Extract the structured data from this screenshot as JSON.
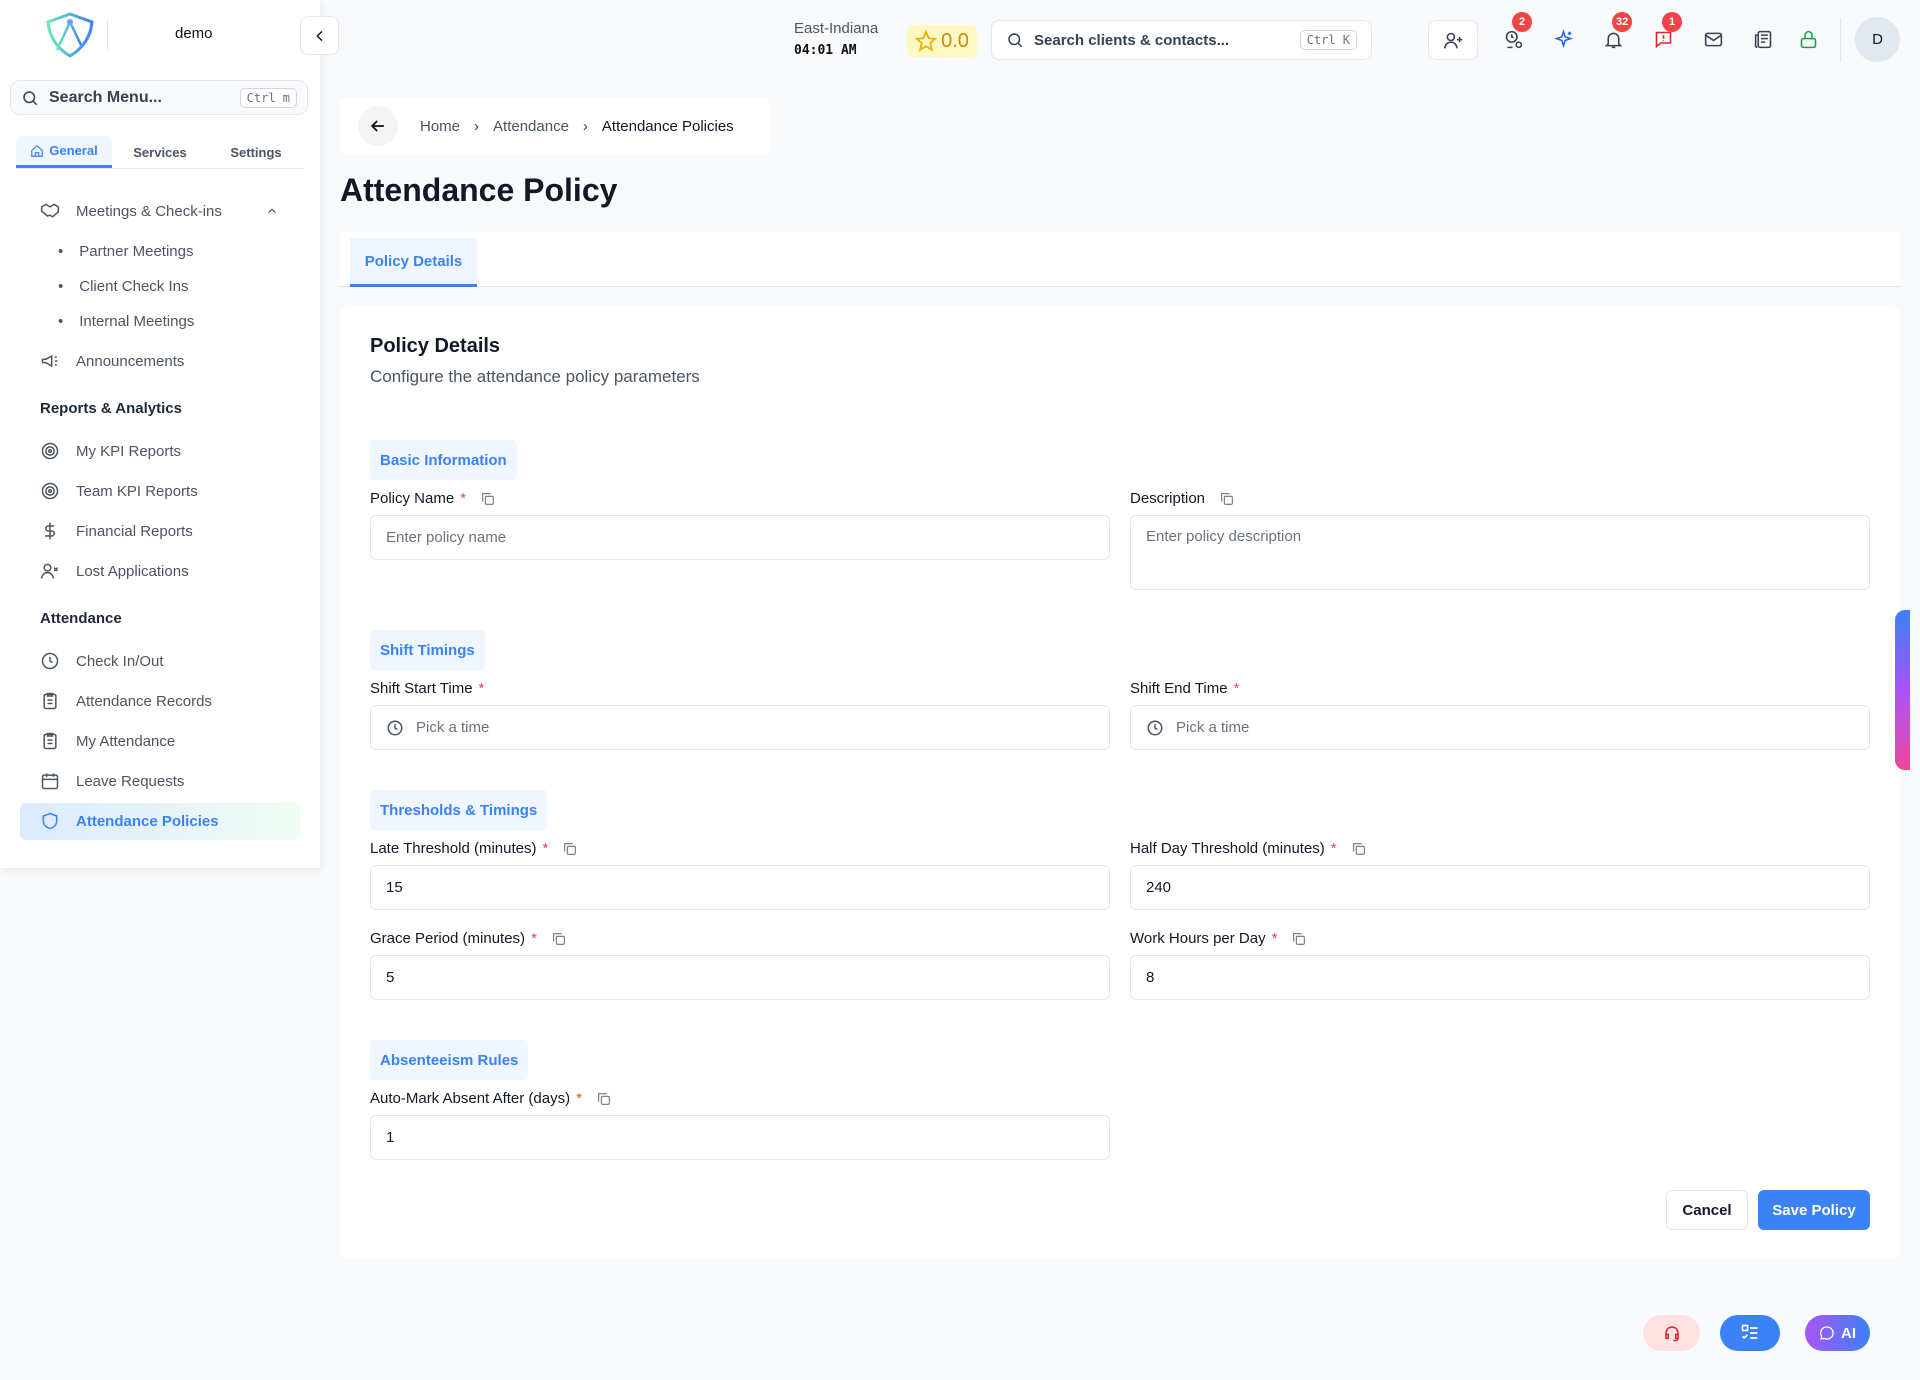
{
  "brand": {
    "name": "demo"
  },
  "sidebar": {
    "search_placeholder": "Search Menu...",
    "search_shortcut": "Ctrl m",
    "tabs": [
      {
        "label": "General"
      },
      {
        "label": "Services"
      },
      {
        "label": "Settings"
      }
    ],
    "meetings": {
      "label": "Meetings & Check-ins",
      "children": [
        "Partner Meetings",
        "Client Check Ins",
        "Internal Meetings"
      ]
    },
    "announcements": "Announcements",
    "reports_header": "Reports & Analytics",
    "reports": [
      "My KPI Reports",
      "Team KPI Reports",
      "Financial Reports",
      "Lost Applications"
    ],
    "attendance_header": "Attendance",
    "attendance": [
      "Check In/Out",
      "Attendance Records",
      "My Attendance",
      "Leave Requests",
      "Attendance Policies"
    ]
  },
  "header": {
    "timezone": "East-Indiana",
    "time": "04:01 AM",
    "rating": "0.0",
    "search_placeholder": "Search clients & contacts...",
    "search_shortcut": "Ctrl K",
    "badges": {
      "contacts": "2",
      "notifications": "32",
      "alerts": "1"
    },
    "avatar": "D"
  },
  "breadcrumb": [
    "Home",
    "Attendance",
    "Attendance Policies"
  ],
  "page_title": "Attendance Policy",
  "tab": "Policy Details",
  "form": {
    "title": "Policy Details",
    "subtitle": "Configure the attendance policy parameters",
    "sections": {
      "basic": "Basic Information",
      "shift": "Shift Timings",
      "thresholds": "Thresholds & Timings",
      "absent": "Absenteeism Rules"
    },
    "policy_name": {
      "label": "Policy Name",
      "placeholder": "Enter policy name",
      "value": ""
    },
    "description": {
      "label": "Description",
      "placeholder": "Enter policy description",
      "value": ""
    },
    "shift_start": {
      "label": "Shift Start Time",
      "placeholder": "Pick a time"
    },
    "shift_end": {
      "label": "Shift End Time",
      "placeholder": "Pick a time"
    },
    "late": {
      "label": "Late Threshold (minutes)",
      "value": "15"
    },
    "half_day": {
      "label": "Half Day Threshold (minutes)",
      "value": "240"
    },
    "grace": {
      "label": "Grace Period (minutes)",
      "value": "5"
    },
    "work_hours": {
      "label": "Work Hours per Day",
      "value": "8"
    },
    "auto_absent": {
      "label": "Auto-Mark Absent After (days)",
      "value": "1"
    },
    "required_mark": "*",
    "cancel": "Cancel",
    "save": "Save Policy"
  },
  "fab": {
    "ai": "AI"
  },
  "colors": {
    "primary": "#3b82f6",
    "danger": "#ef4444",
    "success": "#16a34a"
  }
}
